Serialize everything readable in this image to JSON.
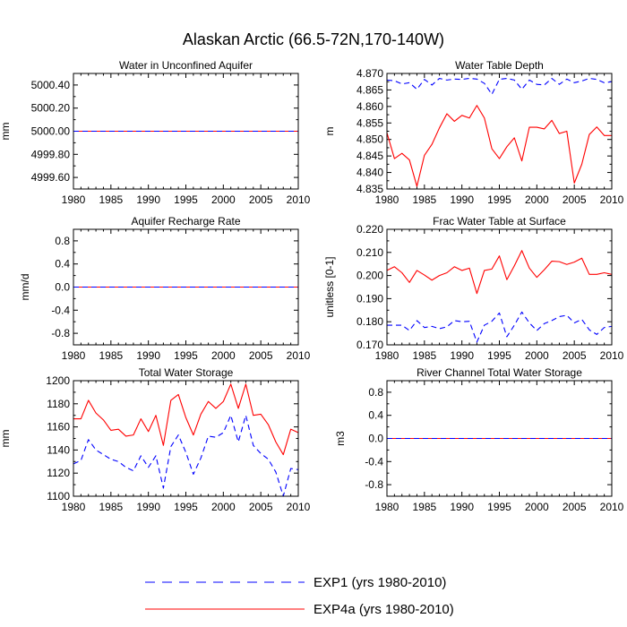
{
  "main_title": "Alaskan Arctic (66.5-72N,170-140W)",
  "colors": {
    "exp1": "#0000ff",
    "exp4a": "#ff0000"
  },
  "legend": [
    {
      "name": "EXP1 (yrs 1980-2010)",
      "color": "#0000ff",
      "dash": true
    },
    {
      "name": "EXP4a (yrs 1980-2010)",
      "color": "#ff0000",
      "dash": false
    }
  ],
  "chart_data": [
    {
      "type": "line",
      "title": "Water in Unconfined Aquifer",
      "ylabel": "mm",
      "xlim": [
        1980,
        2010
      ],
      "ylim": [
        4999.5,
        5000.5
      ],
      "xticks": [
        1980,
        1985,
        1990,
        1995,
        2000,
        2005,
        2010
      ],
      "yticks": [
        4999.6,
        4999.8,
        5000.0,
        5000.2,
        5000.4
      ],
      "ytick_labels": [
        "4999.60",
        "4999.80",
        "5000.00",
        "5000.20",
        "5000.40"
      ],
      "series": [
        {
          "name": "EXP1",
          "style": "dash",
          "color": "#0000ff",
          "x": [
            1980,
            2010
          ],
          "y": [
            5000.0,
            5000.0
          ]
        },
        {
          "name": "EXP4a",
          "style": "solid",
          "color": "#ff0000",
          "x": [
            1980,
            2010
          ],
          "y": [
            5000.0,
            5000.0
          ]
        }
      ]
    },
    {
      "type": "line",
      "title": "Water Table Depth",
      "ylabel": "m",
      "xlim": [
        1980,
        2010
      ],
      "ylim": [
        4.835,
        4.87
      ],
      "xticks": [
        1980,
        1985,
        1990,
        1995,
        2000,
        2005,
        2010
      ],
      "yticks": [
        4.835,
        4.84,
        4.845,
        4.85,
        4.855,
        4.86,
        4.865,
        4.87
      ],
      "ytick_labels": [
        "4.835",
        "4.840",
        "4.845",
        "4.850",
        "4.855",
        "4.860",
        "4.865",
        "4.870"
      ],
      "series": [
        {
          "name": "EXP1",
          "style": "dash",
          "color": "#0000ff",
          "x": [
            1980,
            1981,
            1982,
            1983,
            1984,
            1985,
            1986,
            1987,
            1988,
            1989,
            1990,
            1991,
            1992,
            1993,
            1994,
            1995,
            1996,
            1997,
            1998,
            1999,
            2000,
            2001,
            2002,
            2003,
            2004,
            2005,
            2006,
            2007,
            2008,
            2009,
            2010
          ],
          "y": [
            4.868,
            4.8678,
            4.8668,
            4.8672,
            4.8652,
            4.8682,
            4.8665,
            4.8685,
            4.868,
            4.8683,
            4.8682,
            4.8685,
            4.8683,
            4.867,
            4.8637,
            4.8682,
            4.8685,
            4.868,
            4.8652,
            4.868,
            4.8667,
            4.8665,
            4.8685,
            4.8667,
            4.8683,
            4.8672,
            4.8677,
            4.8685,
            4.8682,
            4.8672,
            4.8675
          ]
        },
        {
          "name": "EXP4a",
          "style": "solid",
          "color": "#ff0000",
          "x": [
            1980,
            1981,
            1982,
            1983,
            1984,
            1985,
            1986,
            1987,
            1988,
            1989,
            1990,
            1991,
            1992,
            1993,
            1994,
            1995,
            1996,
            1997,
            1998,
            1999,
            2000,
            2001,
            2002,
            2003,
            2004,
            2005,
            2006,
            2007,
            2008,
            2009,
            2010
          ],
          "y": [
            4.852,
            4.8442,
            4.8458,
            4.8438,
            4.8358,
            4.8452,
            4.8485,
            4.8535,
            4.8578,
            4.8555,
            4.8573,
            4.8565,
            4.8603,
            4.8565,
            4.8472,
            4.8442,
            4.8478,
            4.8505,
            4.8435,
            4.8537,
            4.8537,
            4.8532,
            4.8558,
            4.8518,
            4.8525,
            4.8368,
            4.8425,
            4.8515,
            4.8538,
            4.8512,
            4.8512
          ]
        }
      ]
    },
    {
      "type": "line",
      "title": "Aquifer Recharge Rate",
      "ylabel": "mm/d",
      "xlim": [
        1980,
        2010
      ],
      "ylim": [
        -1.0,
        1.0
      ],
      "xticks": [
        1980,
        1985,
        1990,
        1995,
        2000,
        2005,
        2010
      ],
      "yticks": [
        -0.8,
        -0.4,
        0.0,
        0.4,
        0.8
      ],
      "ytick_labels": [
        "-0.8",
        "-0.4",
        "0.0",
        "0.4",
        "0.8"
      ],
      "series": [
        {
          "name": "EXP1",
          "style": "dash",
          "color": "#0000ff",
          "x": [
            1980,
            2010
          ],
          "y": [
            0.0,
            0.0
          ]
        },
        {
          "name": "EXP4a",
          "style": "solid",
          "color": "#ff0000",
          "x": [
            1980,
            2010
          ],
          "y": [
            0.0,
            0.0
          ]
        }
      ]
    },
    {
      "type": "line",
      "title": "Frac Water Table at Surface",
      "ylabel": "unitless [0-1]",
      "xlim": [
        1980,
        2010
      ],
      "ylim": [
        0.17,
        0.22
      ],
      "xticks": [
        1980,
        1985,
        1990,
        1995,
        2000,
        2005,
        2010
      ],
      "yticks": [
        0.17,
        0.18,
        0.19,
        0.2,
        0.21,
        0.22
      ],
      "ytick_labels": [
        "0.170",
        "0.180",
        "0.190",
        "0.200",
        "0.210",
        "0.220"
      ],
      "series": [
        {
          "name": "EXP1",
          "style": "dash",
          "color": "#0000ff",
          "x": [
            1980,
            1981,
            1982,
            1983,
            1984,
            1985,
            1986,
            1987,
            1988,
            1989,
            1990,
            1991,
            1992,
            1993,
            1994,
            1995,
            1996,
            1997,
            1998,
            1999,
            2000,
            2001,
            2002,
            2003,
            2004,
            2005,
            2006,
            2007,
            2008,
            2009,
            2010
          ],
          "y": [
            0.1785,
            0.1785,
            0.1785,
            0.1762,
            0.1805,
            0.1775,
            0.178,
            0.177,
            0.1778,
            0.1805,
            0.18,
            0.1802,
            0.1712,
            0.1785,
            0.1802,
            0.1838,
            0.1735,
            0.1785,
            0.1842,
            0.1795,
            0.1762,
            0.1792,
            0.1805,
            0.1822,
            0.1828,
            0.1795,
            0.181,
            0.1765,
            0.1745,
            0.1775,
            0.178
          ]
        },
        {
          "name": "EXP4a",
          "style": "solid",
          "color": "#ff0000",
          "x": [
            1980,
            1981,
            1982,
            1983,
            1984,
            1985,
            1986,
            1987,
            1988,
            1989,
            1990,
            1991,
            1992,
            1993,
            1994,
            1995,
            1996,
            1997,
            1998,
            1999,
            2000,
            2001,
            2002,
            2003,
            2004,
            2005,
            2006,
            2007,
            2008,
            2009,
            2010
          ],
          "y": [
            0.2022,
            0.2038,
            0.2012,
            0.197,
            0.2022,
            0.2002,
            0.198,
            0.2,
            0.2012,
            0.2038,
            0.2022,
            0.2032,
            0.1922,
            0.2022,
            0.2028,
            0.2085,
            0.1982,
            0.2042,
            0.2108,
            0.2032,
            0.1992,
            0.2025,
            0.2062,
            0.206,
            0.2048,
            0.2058,
            0.2075,
            0.2005,
            0.2005,
            0.2012,
            0.2005
          ]
        }
      ]
    },
    {
      "type": "line",
      "title": "Total Water Storage",
      "ylabel": "mm",
      "xlim": [
        1980,
        2010
      ],
      "ylim": [
        1100,
        1200
      ],
      "xticks": [
        1980,
        1985,
        1990,
        1995,
        2000,
        2005,
        2010
      ],
      "yticks": [
        1100,
        1120,
        1140,
        1160,
        1180,
        1200
      ],
      "ytick_labels": [
        "1100",
        "1120",
        "1140",
        "1160",
        "1180",
        "1200"
      ],
      "series": [
        {
          "name": "EXP1",
          "style": "dash",
          "color": "#0000ff",
          "x": [
            1980,
            1981,
            1982,
            1983,
            1984,
            1985,
            1986,
            1987,
            1988,
            1989,
            1990,
            1991,
            1992,
            1993,
            1994,
            1995,
            1996,
            1997,
            1998,
            1999,
            2000,
            2001,
            2002,
            2003,
            2004,
            2005,
            2006,
            2007,
            2008,
            2009,
            2010
          ],
          "y": [
            1128,
            1131,
            1149,
            1140,
            1136,
            1132,
            1130,
            1125,
            1122,
            1135,
            1125,
            1135,
            1107,
            1143,
            1153,
            1138,
            1119,
            1133,
            1152,
            1151,
            1155,
            1170,
            1147,
            1170,
            1144,
            1137,
            1132,
            1121,
            1100,
            1124,
            1123
          ]
        },
        {
          "name": "EXP4a",
          "style": "solid",
          "color": "#ff0000",
          "x": [
            1980,
            1981,
            1982,
            1983,
            1984,
            1985,
            1986,
            1987,
            1988,
            1989,
            1990,
            1991,
            1992,
            1993,
            1994,
            1995,
            1996,
            1997,
            1998,
            1999,
            2000,
            2001,
            2002,
            2003,
            2004,
            2005,
            2006,
            2007,
            2008,
            2009,
            2010
          ],
          "y": [
            1167,
            1167,
            1183,
            1172,
            1166,
            1157,
            1158,
            1152,
            1153,
            1167,
            1156,
            1170,
            1144,
            1183,
            1188,
            1168,
            1153,
            1171,
            1182,
            1176,
            1182,
            1197,
            1176,
            1197,
            1170,
            1171,
            1162,
            1147,
            1136,
            1158,
            1155
          ]
        }
      ]
    },
    {
      "type": "line",
      "title": "River Channel Total Water Storage",
      "ylabel": "m3",
      "xlim": [
        1980,
        2010
      ],
      "ylim": [
        -1.0,
        1.0
      ],
      "xticks": [
        1980,
        1985,
        1990,
        1995,
        2000,
        2005,
        2010
      ],
      "yticks": [
        -0.8,
        -0.4,
        0.0,
        0.4,
        0.8
      ],
      "ytick_labels": [
        "-0.8",
        "-0.4",
        "0.0",
        "0.4",
        "0.8"
      ],
      "series": [
        {
          "name": "EXP1",
          "style": "dash",
          "color": "#0000ff",
          "x": [
            1980,
            2010
          ],
          "y": [
            0.0,
            0.0
          ]
        },
        {
          "name": "EXP4a",
          "style": "solid",
          "color": "#ff0000",
          "x": [
            1980,
            2010
          ],
          "y": [
            0.0,
            0.0
          ]
        }
      ]
    }
  ]
}
